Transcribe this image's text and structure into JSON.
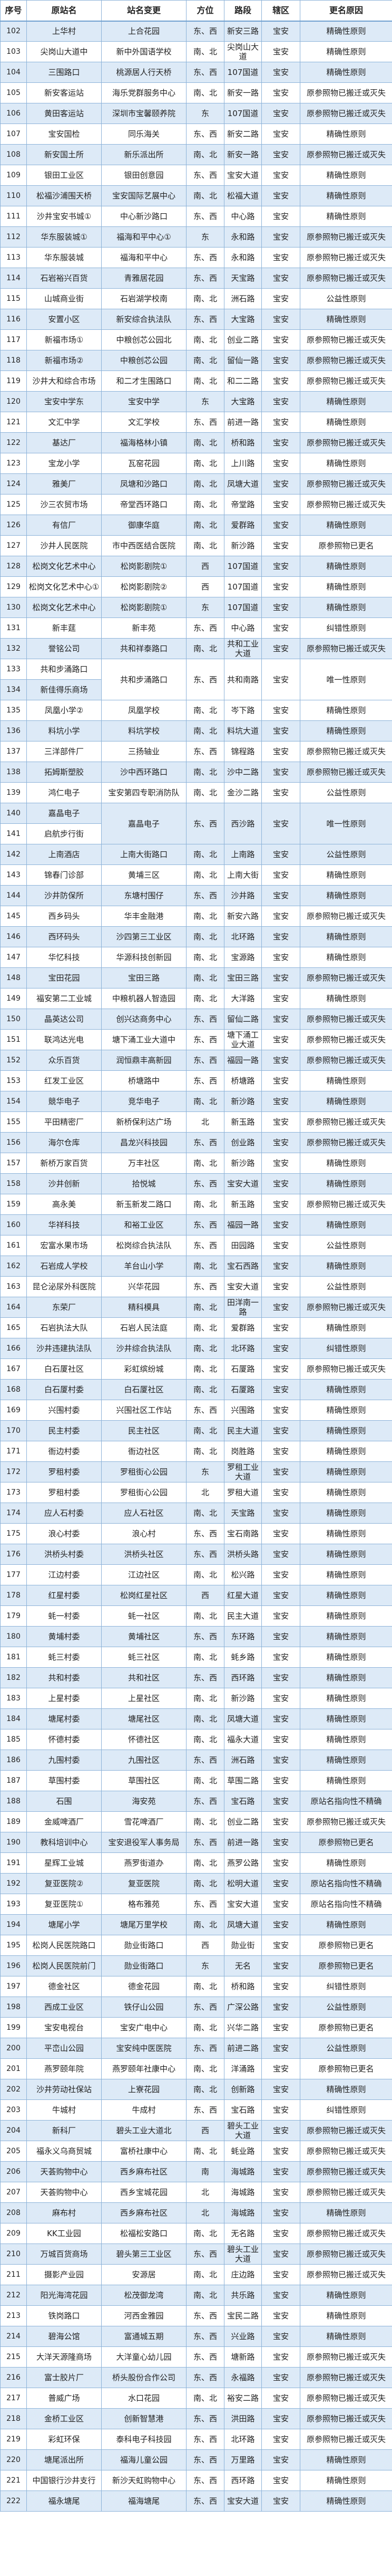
{
  "colors": {
    "stripe": "#ddeaf7",
    "border": "#8db3d9"
  },
  "headers": [
    "序号",
    "原站名",
    "站名变更",
    "方位",
    "路段",
    "辖区",
    "更名原因"
  ],
  "rows": [
    [
      "102",
      "上华村",
      "上合花园",
      "东、西",
      "新安三路",
      "宝安",
      "精确性原则"
    ],
    [
      "103",
      "尖岗山大道中",
      "新中外国语学校",
      "南、北",
      "尖岗山大道",
      "宝安",
      "精确性原则"
    ],
    [
      "104",
      "三围路口",
      "桃源居人行天桥",
      "东、西",
      "107国道",
      "宝安",
      "精确性原则"
    ],
    [
      "105",
      "新安客运站",
      "海乐党群服务中心",
      "南、北",
      "新安一路",
      "宝安",
      "原参照物已搬迁或灭失"
    ],
    [
      "106",
      "黄田客运站",
      "深圳市宝馨颐养院",
      "东",
      "107国道",
      "宝安",
      "原参照物已搬迁或灭失"
    ],
    [
      "107",
      "宝安国检",
      "同乐海关",
      "东、西",
      "新安二路",
      "宝安",
      "精确性原则"
    ],
    [
      "108",
      "新安国土所",
      "新乐派出所",
      "南、北",
      "新安一路",
      "宝安",
      "原参照物已搬迁或灭失"
    ],
    [
      "109",
      "银田工业区",
      "银田创意园",
      "东、西",
      "宝安大道",
      "宝安",
      "精确性原则"
    ],
    [
      "110",
      "松福沙浦围天桥",
      "宝安国际艺展中心",
      "南、北",
      "松福大道",
      "宝安",
      "精确性原则"
    ],
    [
      "111",
      "沙井宝安书城①",
      "中心新沙路口",
      "东、西",
      "中心路",
      "宝安",
      "精确性原则"
    ],
    [
      "112",
      "华东服装城①",
      "福海和平中心①",
      "东",
      "永和路",
      "宝安",
      "原参照物已搬迁或灭失"
    ],
    [
      "113",
      "华东服装城",
      "福海和平中心",
      "东、西",
      "永和路",
      "宝安",
      "原参照物已搬迁或灭失"
    ],
    [
      "114",
      "石岩裕兴百货",
      "青雅居花园",
      "东、西",
      "天宝路",
      "宝安",
      "原参照物已搬迁或灭失"
    ],
    [
      "115",
      "山城商业街",
      "石岩湖学校南",
      "南、北",
      "洲石路",
      "宝安",
      "公益性原则"
    ],
    [
      "116",
      "安置小区",
      "新安综合执法队",
      "东、西",
      "大宝路",
      "宝安",
      "精确性原则"
    ],
    [
      "117",
      "新福市场①",
      "中粮创芯公园北",
      "南、北",
      "创业二路",
      "宝安",
      "原参照物已搬迁或灭失"
    ],
    [
      "118",
      "新福市场②",
      "中粮创芯公园",
      "南、北",
      "留仙一路",
      "宝安",
      "原参照物已搬迁或灭失"
    ],
    [
      "119",
      "沙井大和综合市场",
      "和二才生围路口",
      "南、北",
      "和二二路",
      "宝安",
      "原参照物已搬迁或灭失"
    ],
    [
      "120",
      "宝安中学东",
      "宝安中学",
      "东",
      "大宝路",
      "宝安",
      "精确性原则"
    ],
    [
      "121",
      "文汇中学",
      "文汇学校",
      "东、西",
      "前进一路",
      "宝安",
      "精确性原则"
    ],
    [
      "122",
      "基达厂",
      "福海格林小镇",
      "南、北",
      "桥和路",
      "宝安",
      "原参照物已搬迁或灭失"
    ],
    [
      "123",
      "宝龙小学",
      "瓦窑花园",
      "南、北",
      "上川路",
      "宝安",
      "精确性原则"
    ],
    [
      "124",
      "雅美厂",
      "凤塘和沙路口",
      "南、北",
      "凤塘大道",
      "宝安",
      "原参照物已搬迁或灭失"
    ],
    [
      "125",
      "沙三农贸市场",
      "帝堂西环路口",
      "南、北",
      "帝堂路",
      "宝安",
      "原参照物已搬迁或灭失"
    ],
    [
      "126",
      "有信厂",
      "御康华庭",
      "南、北",
      "爱群路",
      "宝安",
      "精确性原则"
    ],
    [
      "127",
      "沙井人民医院",
      "市中西医结合医院",
      "南、北",
      "新沙路",
      "宝安",
      "原参照物已更名"
    ],
    [
      "128",
      "松岗文化艺术中心",
      "松岗影剧院①",
      "西",
      "107国道",
      "宝安",
      "精确性原则"
    ],
    [
      "129",
      "松岗文化艺术中心①",
      "松岗影剧院②",
      "西",
      "107国道",
      "宝安",
      "精确性原则"
    ],
    [
      "130",
      "松岗文化艺术中心",
      "松岗影剧院①",
      "东",
      "107国道",
      "宝安",
      "精确性原则"
    ],
    [
      "131",
      "新丰莛",
      "新丰苑",
      "东、西",
      "中心路",
      "宝安",
      "纠错性原则"
    ],
    [
      "132",
      "誉铭公司",
      "共和祥泰路口",
      "南、北",
      "共和工业大道",
      "宝安",
      "原参照物已搬迁或灭失"
    ],
    [
      "133",
      "共和步涌路口",
      "共和步涌路口",
      "东、西",
      "共和南路",
      "宝安",
      "唯一性原则"
    ],
    [
      "134",
      "新佳得乐商场"
    ],
    [
      "135",
      "凤凰小学②",
      "凤凰学校",
      "南、北",
      "岑下路",
      "宝安",
      "精确性原则"
    ],
    [
      "136",
      "料坑小学",
      "料坑学校",
      "南、北",
      "料坑大道",
      "宝安",
      "精确性原则"
    ],
    [
      "137",
      "三洋部件厂",
      "三扬轴业",
      "东、西",
      "锦程路",
      "宝安",
      "原参照物已搬迁或灭失"
    ],
    [
      "138",
      "拓姆斯塑胶",
      "沙中西环路口",
      "南、北",
      "沙中二路",
      "宝安",
      "原参照物已搬迁或灭失"
    ],
    [
      "139",
      "鸿仁电子",
      "宝安第四专职消防队",
      "南、北",
      "金沙二路",
      "宝安",
      "公益性原则"
    ],
    [
      "140",
      "嘉晶电子",
      "嘉晶电子",
      "东、西",
      "西沙路",
      "宝安",
      "唯一性原则"
    ],
    [
      "141",
      "启航步行街"
    ],
    [
      "142",
      "上南酒店",
      "上南大街路口",
      "南、北",
      "上南路",
      "宝安",
      "公益性原则"
    ],
    [
      "143",
      "锦春门诊部",
      "黄埔三区",
      "南、北",
      "上南大街",
      "宝安",
      "精确性原则"
    ],
    [
      "144",
      "沙井防保所",
      "东塘村围仔",
      "东、西",
      "沙井路",
      "宝安",
      "精确性原则"
    ],
    [
      "145",
      "西乡码头",
      "华丰金融港",
      "南、北",
      "新安六路",
      "宝安",
      "原参照物已搬迁或灭失"
    ],
    [
      "146",
      "西环码头",
      "沙四第三工业区",
      "南、北",
      "北环路",
      "宝安",
      "精确性原则"
    ],
    [
      "147",
      "华忆科技",
      "华源科技创新园",
      "南、北",
      "宝源路",
      "宝安",
      "精确性原则"
    ],
    [
      "148",
      "宝田花园",
      "宝田三路",
      "南、北",
      "宝田三路",
      "宝安",
      "原参照物已搬迁或灭失"
    ],
    [
      "149",
      "福安第二工业城",
      "中粮机器人智造园",
      "南、北",
      "大洋路",
      "宝安",
      "精确性原则"
    ],
    [
      "150",
      "晶英达公司",
      "创兴达商务中心",
      "东、西",
      "留仙二路",
      "宝安",
      "原参照物已搬迁或灭失"
    ],
    [
      "151",
      "联鸿达光电",
      "塘下涌工业大道中",
      "东、西",
      "塘下涌工业大道",
      "宝安",
      "原参照物已搬迁或灭失"
    ],
    [
      "152",
      "众乐百货",
      "润恒鼎丰高新园",
      "东、西",
      "福园一路",
      "宝安",
      "原参照物已搬迁或灭失"
    ],
    [
      "153",
      "红发工业区",
      "桥塘路中",
      "东、西",
      "桥塘路",
      "宝安",
      "精确性原则"
    ],
    [
      "154",
      "競华电子",
      "竞华电子",
      "南、北",
      "新沙路",
      "宝安",
      "精确性原则"
    ],
    [
      "155",
      "平田精密厂",
      "新桥保利达广场",
      "北",
      "新玉路",
      "宝安",
      "原参照物已搬迁或灭失"
    ],
    [
      "156",
      "海尔仓库",
      "昌龙兴科技园",
      "东、西",
      "创业路",
      "宝安",
      "原参照物已搬迁或灭失"
    ],
    [
      "157",
      "新桥万家百货",
      "万丰社区",
      "南、北",
      "新沙路",
      "宝安",
      "精确性原则"
    ],
    [
      "158",
      "沙井创新",
      "拾悦城",
      "东、西",
      "宝安大道",
      "宝安",
      "精确性原则"
    ],
    [
      "159",
      "高永美",
      "新玉新发二路口",
      "南、北",
      "新玉路",
      "宝安",
      "原参照物已搬迁或灭失"
    ],
    [
      "160",
      "华祥科技",
      "和裕工业区",
      "东、西",
      "福园一路",
      "宝安",
      "精确性原则"
    ],
    [
      "161",
      "宏富水果市场",
      "松岗综合执法队",
      "东、西",
      "田园路",
      "宝安",
      "公益性原则"
    ],
    [
      "162",
      "石岩成人学校",
      "羊台山小学",
      "南、北",
      "宝石西路",
      "宝安",
      "精确性原则"
    ],
    [
      "163",
      "昆仑泌尿外科医院",
      "兴华花园",
      "东、西",
      "宝安大道",
      "宝安",
      "公益性原则"
    ],
    [
      "164",
      "东荣厂",
      "精科模具",
      "南、北",
      "田洋南一路",
      "宝安",
      "原参照物已搬迁或灭失"
    ],
    [
      "165",
      "石岩执法大队",
      "石岩人民法庭",
      "南、北",
      "爱群路",
      "宝安",
      "精确性原则"
    ],
    [
      "166",
      "沙井违建执法队",
      "沙井综合执法队",
      "南、北",
      "北环路",
      "宝安",
      "纠错性原则"
    ],
    [
      "167",
      "白石厦社区",
      "彩虹缤纷城",
      "南、北",
      "石厦路",
      "宝安",
      "原参照物已搬迁或灭失"
    ],
    [
      "168",
      "白石厦村委",
      "白石厦社区",
      "南、北",
      "石厦路",
      "宝安",
      "精确性原则"
    ],
    [
      "169",
      "兴围村委",
      "兴围社区工作站",
      "东、西",
      "兴围路",
      "宝安",
      "精确性原则"
    ],
    [
      "170",
      "民主村委",
      "民主社区",
      "南、北",
      "民主大道",
      "宝安",
      "精确性原则"
    ],
    [
      "171",
      "衙边村委",
      "衙边社区",
      "南、北",
      "岗胜路",
      "宝安",
      "精确性原则"
    ],
    [
      "172",
      "罗租村委",
      "罗租街心公园",
      "东",
      "罗租工业大道",
      "宝安",
      "精确性原则"
    ],
    [
      "173",
      "罗租村委",
      "罗租街心公园",
      "北",
      "罗租大道",
      "宝安",
      "精确性原则"
    ],
    [
      "174",
      "应人石村委",
      "应人石社区",
      "南、北",
      "天宝路",
      "宝安",
      "精确性原则"
    ],
    [
      "175",
      "浪心村委",
      "浪心村",
      "东、西",
      "宝石南路",
      "宝安",
      "精确性原则"
    ],
    [
      "176",
      "洪桥头村委",
      "洪桥头社区",
      "东、西",
      "洪桥头路",
      "宝安",
      "精确性原则"
    ],
    [
      "177",
      "江边村委",
      "江边社区",
      "南、北",
      "松兴路",
      "宝安",
      "精确性原则"
    ],
    [
      "178",
      "红星村委",
      "松岗红星社区",
      "西",
      "红星大道",
      "宝安",
      "精确性原则"
    ],
    [
      "179",
      "蚝一村委",
      "蚝一社区",
      "南、北",
      "民主大道",
      "宝安",
      "精确性原则"
    ],
    [
      "180",
      "黄埔村委",
      "黄埔社区",
      "东、西",
      "东环路",
      "宝安",
      "精确性原则"
    ],
    [
      "181",
      "蚝三村委",
      "蚝三社区",
      "南、北",
      "蚝乡路",
      "宝安",
      "精确性原则"
    ],
    [
      "182",
      "共和村委",
      "共和社区",
      "东、西",
      "西环路",
      "宝安",
      "精确性原则"
    ],
    [
      "183",
      "上星村委",
      "上星社区",
      "南、北",
      "新沙路",
      "宝安",
      "精确性原则"
    ],
    [
      "184",
      "塘尾村委",
      "塘尾社区",
      "南、北",
      "凤塘大道",
      "宝安",
      "精确性原则"
    ],
    [
      "185",
      "怀德村委",
      "怀德社区",
      "南、北",
      "福永大道",
      "宝安",
      "精确性原则"
    ],
    [
      "186",
      "九围村委",
      "九围社区",
      "东、西",
      "洲石路",
      "宝安",
      "精确性原则"
    ],
    [
      "187",
      "草围村委",
      "草围社区",
      "南、北",
      "草围二路",
      "宝安",
      "精确性原则"
    ],
    [
      "188",
      "石围",
      "海安苑",
      "东、西",
      "宝石路",
      "宝安",
      "原站名指向性不精确"
    ],
    [
      "189",
      "金威啤酒厂",
      "雪花啤酒厂",
      "南、北",
      "创业二路",
      "宝安",
      "原参照物已搬迁或灭失"
    ],
    [
      "190",
      "教科培训中心",
      "宝安退役军人事务局",
      "东、西",
      "前进一路",
      "宝安",
      "原参照物已更名"
    ],
    [
      "191",
      "星辉工业城",
      "燕罗街道办",
      "南、北",
      "燕罗公路",
      "宝安",
      "精确性原则"
    ],
    [
      "192",
      "复亚医院②",
      "复亚医院",
      "南、北",
      "松明大道",
      "宝安",
      "原站名指向性不精确"
    ],
    [
      "193",
      "复亚医院①",
      "格布雅苑",
      "东、西",
      "宝安大道",
      "宝安",
      "原站名指向性不精确"
    ],
    [
      "194",
      "塘尾小学",
      "塘尾万里学校",
      "南、北",
      "凤塘大道",
      "宝安",
      "精确性原则"
    ],
    [
      "195",
      "松岗人民医院路口",
      "勋业街路口",
      "西",
      "勋业街",
      "宝安",
      "原参照物已更名"
    ],
    [
      "196",
      "松岗人民医院前门",
      "勋业街路口",
      "东",
      "无名",
      "宝安",
      "原参照物已更名"
    ],
    [
      "197",
      "德金社区",
      "德金花园",
      "南、北",
      "桥和路",
      "宝安",
      "纠错性原则"
    ],
    [
      "198",
      "西成工业区",
      "铁仔山公园",
      "东、西",
      "广深公路",
      "宝安",
      "公益性原则"
    ],
    [
      "199",
      "宝安电视台",
      "宝安广电中心",
      "南、北",
      "兴华二路",
      "宝安",
      "原参照物已更名"
    ],
    [
      "200",
      "平峦山公园",
      "宝安纯中医医院",
      "东、西",
      "前进二路",
      "宝安",
      "公益性原则"
    ],
    [
      "201",
      "燕罗颐年院",
      "燕罗颐年社康中心",
      "南、北",
      "洋涌路",
      "宝安",
      "原参照物已更名"
    ],
    [
      "202",
      "沙井劳动社保站",
      "上寮花园",
      "南、北",
      "创新路",
      "宝安",
      "精确性原则"
    ],
    [
      "203",
      "牛城村",
      "牛成村",
      "东、西",
      "宝石路",
      "宝安",
      "纠错性原则"
    ],
    [
      "204",
      "新科厂",
      "碧头工业大道北",
      "西",
      "碧头工业大道",
      "宝安",
      "原参照物已搬迁或灭失"
    ],
    [
      "205",
      "福永义乌商贸城",
      "富桥社康中心",
      "南、北",
      "蚝业路",
      "宝安",
      "原参照物已搬迁或灭失"
    ],
    [
      "206",
      "天荟购物中心",
      "西乡麻布社区",
      "南",
      "海城路",
      "宝安",
      "原参照物已搬迁或灭失"
    ],
    [
      "207",
      "天荟购物中心",
      "西乡宝城花园",
      "北",
      "海城路",
      "宝安",
      "原参照物已搬迁或灭失"
    ],
    [
      "208",
      "麻布村",
      "西乡麻布社区",
      "北",
      "海城路",
      "宝安",
      "精确性原则"
    ],
    [
      "209",
      "KK工业园",
      "松福松安路口",
      "南、北",
      "无名路",
      "宝安",
      "原参照物已搬迁或灭失"
    ],
    [
      "210",
      "万城百货商场",
      "碧头第三工业区",
      "东、西",
      "碧头工业大道",
      "宝安",
      "原参照物已搬迁或灭失"
    ],
    [
      "211",
      "摄影产业园",
      "安源居",
      "南、北",
      "庄边路",
      "宝安",
      "原参照物已搬迁或灭失"
    ],
    [
      "212",
      "阳光海湾花园",
      "松茂御龙湾",
      "南、北",
      "共乐路",
      "宝安",
      "精确性原则"
    ],
    [
      "213",
      "铁岗路口",
      "河西金雅园",
      "东、西",
      "宝民二路",
      "宝安",
      "精确性原则"
    ],
    [
      "214",
      "碧海公馆",
      "富通城五期",
      "东、西",
      "兴业路",
      "宝安",
      "精确性原则"
    ],
    [
      "215",
      "大洋天源隆商场",
      "大洋童心幼儿园",
      "东、西",
      "塘新路",
      "宝安",
      "原参照物已搬迁或灭失"
    ],
    [
      "216",
      "富士胶片厂",
      "桥头股份合作公司",
      "东、西",
      "永福路",
      "宝安",
      "原参照物已搬迁或灭失"
    ],
    [
      "217",
      "普威广场",
      "水口花园",
      "南、北",
      "裕安二路",
      "宝安",
      "原参照物已搬迁或灭失"
    ],
    [
      "218",
      "金桥工业区",
      "创新智慧港",
      "东、西",
      "洪田路",
      "宝安",
      "原参照物已搬迁或灭失"
    ],
    [
      "219",
      "彩虹环保",
      "泰科电子科技园",
      "东、西",
      "北环路",
      "宝安",
      "原参照物已搬迁或灭失"
    ],
    [
      "220",
      "塘尾派出所",
      "福海儿童公园",
      "东、西",
      "万里路",
      "宝安",
      "精确性原则"
    ],
    [
      "221",
      "中国银行沙井支行",
      "新沙天虹购物中心",
      "东、西",
      "西环路",
      "宝安",
      "精确性原则"
    ],
    [
      "222",
      "福永塘尾",
      "福海塘尾",
      "东、西",
      "宝安大道",
      "宝安",
      "精确性原则"
    ]
  ]
}
